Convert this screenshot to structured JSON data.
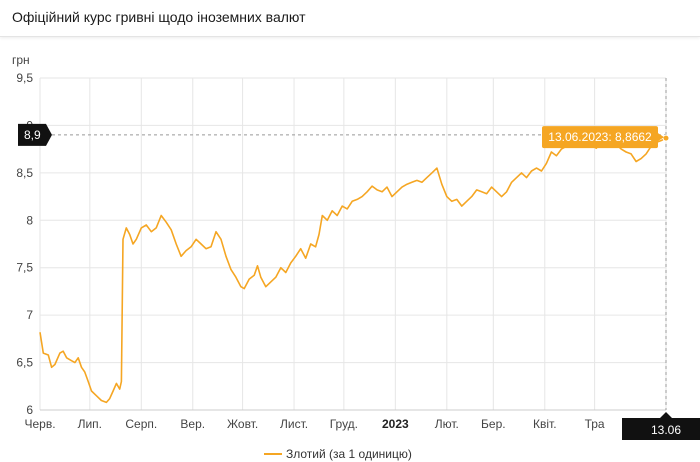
{
  "page": {
    "title": "Офіційний курс гривні щодо іноземних валют"
  },
  "chart_data": {
    "type": "line",
    "title": "Офіційний курс гривні щодо іноземних валют",
    "ylabel": "грн",
    "ylim": [
      6,
      9.5
    ],
    "yticks": [
      "9,5",
      "9",
      "8,5",
      "8",
      "7,5",
      "7",
      "6,5",
      "6"
    ],
    "ytick_values": [
      9.5,
      9,
      8.5,
      8,
      7.5,
      7,
      6.5,
      6
    ],
    "xlim": [
      "2022-06-01",
      "2023-06-13"
    ],
    "xticks": [
      {
        "label": "Черв.",
        "date": "2022-06-01"
      },
      {
        "label": "Лип.",
        "date": "2022-07-01"
      },
      {
        "label": "Серп.",
        "date": "2022-08-01"
      },
      {
        "label": "Вер.",
        "date": "2022-09-01"
      },
      {
        "label": "Жовт.",
        "date": "2022-10-01"
      },
      {
        "label": "Лист.",
        "date": "2022-11-01"
      },
      {
        "label": "Груд.",
        "date": "2022-12-01"
      },
      {
        "label": "2023",
        "date": "2023-01-01",
        "bold": true
      },
      {
        "label": "Лют.",
        "date": "2023-02-01"
      },
      {
        "label": "Бер.",
        "date": "2023-03-01"
      },
      {
        "label": "Квіт.",
        "date": "2023-04-01"
      },
      {
        "label": "Тра",
        "date": "2023-05-01"
      }
    ],
    "grid": true,
    "legend_position": "bottom-center",
    "series": [
      {
        "name": "Злотий (за 1 одиницю)",
        "color": "#f5a623",
        "points": [
          [
            "2022-06-01",
            6.82
          ],
          [
            "2022-06-03",
            6.6
          ],
          [
            "2022-06-06",
            6.58
          ],
          [
            "2022-06-08",
            6.45
          ],
          [
            "2022-06-10",
            6.48
          ],
          [
            "2022-06-13",
            6.6
          ],
          [
            "2022-06-15",
            6.62
          ],
          [
            "2022-06-17",
            6.55
          ],
          [
            "2022-06-20",
            6.52
          ],
          [
            "2022-06-22",
            6.5
          ],
          [
            "2022-06-24",
            6.55
          ],
          [
            "2022-06-26",
            6.45
          ],
          [
            "2022-06-28",
            6.4
          ],
          [
            "2022-06-30",
            6.3
          ],
          [
            "2022-07-02",
            6.2
          ],
          [
            "2022-07-05",
            6.15
          ],
          [
            "2022-07-08",
            6.1
          ],
          [
            "2022-07-11",
            6.08
          ],
          [
            "2022-07-13",
            6.12
          ],
          [
            "2022-07-15",
            6.2
          ],
          [
            "2022-07-17",
            6.28
          ],
          [
            "2022-07-19",
            6.22
          ],
          [
            "2022-07-20",
            6.3
          ],
          [
            "2022-07-21",
            7.8
          ],
          [
            "2022-07-23",
            7.92
          ],
          [
            "2022-07-25",
            7.85
          ],
          [
            "2022-07-27",
            7.75
          ],
          [
            "2022-07-29",
            7.8
          ],
          [
            "2022-08-01",
            7.92
          ],
          [
            "2022-08-04",
            7.95
          ],
          [
            "2022-08-07",
            7.88
          ],
          [
            "2022-08-10",
            7.92
          ],
          [
            "2022-08-13",
            8.05
          ],
          [
            "2022-08-16",
            7.98
          ],
          [
            "2022-08-19",
            7.9
          ],
          [
            "2022-08-22",
            7.75
          ],
          [
            "2022-08-25",
            7.62
          ],
          [
            "2022-08-28",
            7.68
          ],
          [
            "2022-08-31",
            7.72
          ],
          [
            "2022-09-03",
            7.8
          ],
          [
            "2022-09-06",
            7.75
          ],
          [
            "2022-09-09",
            7.7
          ],
          [
            "2022-09-12",
            7.72
          ],
          [
            "2022-09-15",
            7.88
          ],
          [
            "2022-09-18",
            7.8
          ],
          [
            "2022-09-21",
            7.62
          ],
          [
            "2022-09-24",
            7.48
          ],
          [
            "2022-09-27",
            7.4
          ],
          [
            "2022-09-30",
            7.3
          ],
          [
            "2022-10-02",
            7.28
          ],
          [
            "2022-10-05",
            7.38
          ],
          [
            "2022-10-08",
            7.42
          ],
          [
            "2022-10-10",
            7.52
          ],
          [
            "2022-10-12",
            7.4
          ],
          [
            "2022-10-15",
            7.3
          ],
          [
            "2022-10-18",
            7.35
          ],
          [
            "2022-10-21",
            7.4
          ],
          [
            "2022-10-24",
            7.5
          ],
          [
            "2022-10-27",
            7.45
          ],
          [
            "2022-10-30",
            7.55
          ],
          [
            "2022-11-02",
            7.62
          ],
          [
            "2022-11-05",
            7.7
          ],
          [
            "2022-11-08",
            7.6
          ],
          [
            "2022-11-11",
            7.75
          ],
          [
            "2022-11-14",
            7.72
          ],
          [
            "2022-11-16",
            7.85
          ],
          [
            "2022-11-18",
            8.05
          ],
          [
            "2022-11-21",
            8.0
          ],
          [
            "2022-11-24",
            8.1
          ],
          [
            "2022-11-27",
            8.05
          ],
          [
            "2022-11-30",
            8.15
          ],
          [
            "2022-12-03",
            8.12
          ],
          [
            "2022-12-06",
            8.2
          ],
          [
            "2022-12-09",
            8.22
          ],
          [
            "2022-12-12",
            8.25
          ],
          [
            "2022-12-15",
            8.3
          ],
          [
            "2022-12-18",
            8.36
          ],
          [
            "2022-12-21",
            8.32
          ],
          [
            "2022-12-24",
            8.3
          ],
          [
            "2022-12-27",
            8.35
          ],
          [
            "2022-12-30",
            8.25
          ],
          [
            "2023-01-02",
            8.3
          ],
          [
            "2023-01-05",
            8.35
          ],
          [
            "2023-01-08",
            8.38
          ],
          [
            "2023-01-11",
            8.4
          ],
          [
            "2023-01-14",
            8.42
          ],
          [
            "2023-01-17",
            8.4
          ],
          [
            "2023-01-20",
            8.45
          ],
          [
            "2023-01-23",
            8.5
          ],
          [
            "2023-01-26",
            8.55
          ],
          [
            "2023-01-29",
            8.38
          ],
          [
            "2023-02-01",
            8.25
          ],
          [
            "2023-02-04",
            8.2
          ],
          [
            "2023-02-07",
            8.22
          ],
          [
            "2023-02-10",
            8.15
          ],
          [
            "2023-02-13",
            8.2
          ],
          [
            "2023-02-16",
            8.25
          ],
          [
            "2023-02-19",
            8.32
          ],
          [
            "2023-02-22",
            8.3
          ],
          [
            "2023-02-25",
            8.28
          ],
          [
            "2023-02-28",
            8.35
          ],
          [
            "2023-03-03",
            8.3
          ],
          [
            "2023-03-06",
            8.25
          ],
          [
            "2023-03-09",
            8.3
          ],
          [
            "2023-03-12",
            8.4
          ],
          [
            "2023-03-15",
            8.45
          ],
          [
            "2023-03-18",
            8.5
          ],
          [
            "2023-03-21",
            8.45
          ],
          [
            "2023-03-24",
            8.52
          ],
          [
            "2023-03-27",
            8.55
          ],
          [
            "2023-03-30",
            8.52
          ],
          [
            "2023-04-02",
            8.6
          ],
          [
            "2023-04-05",
            8.72
          ],
          [
            "2023-04-08",
            8.68
          ],
          [
            "2023-04-11",
            8.75
          ],
          [
            "2023-04-14",
            8.78
          ],
          [
            "2023-04-17",
            8.85
          ],
          [
            "2023-04-20",
            8.82
          ],
          [
            "2023-04-23",
            8.88
          ],
          [
            "2023-04-26",
            8.84
          ],
          [
            "2023-04-29",
            8.8
          ],
          [
            "2023-05-02",
            8.76
          ],
          [
            "2023-05-05",
            8.82
          ],
          [
            "2023-05-08",
            8.85
          ],
          [
            "2023-05-11",
            8.88
          ],
          [
            "2023-05-14",
            8.8
          ],
          [
            "2023-05-17",
            8.75
          ],
          [
            "2023-05-20",
            8.72
          ],
          [
            "2023-05-23",
            8.7
          ],
          [
            "2023-05-26",
            8.62
          ],
          [
            "2023-05-29",
            8.65
          ],
          [
            "2023-06-01",
            8.7
          ],
          [
            "2023-06-04",
            8.78
          ],
          [
            "2023-06-07",
            8.82
          ],
          [
            "2023-06-10",
            8.84
          ],
          [
            "2023-06-13",
            8.8662
          ]
        ]
      }
    ],
    "annotations": {
      "crosshair_y_label": "8,9",
      "crosshair_y_value": 8.9,
      "callout_text": "13.06.2023: 8,8662",
      "callout_date": "2023-06-13",
      "callout_value": 8.8662,
      "x_flag_label": "13.06",
      "x_flag_date": "2023-06-13"
    }
  },
  "colors": {
    "line": "#f5a623",
    "callout_bg": "#f5a623",
    "flag_bg": "#111111",
    "grid": "#e6e6e6",
    "axis": "#cccccc"
  }
}
